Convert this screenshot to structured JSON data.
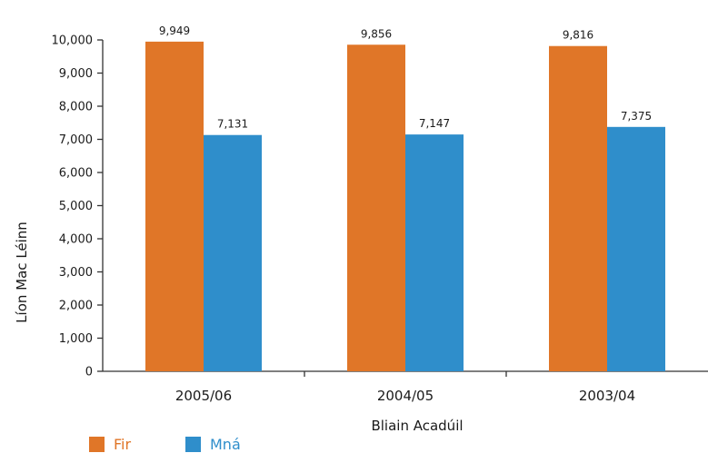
{
  "chart_data": {
    "type": "bar",
    "categories": [
      "2005/06",
      "2004/05",
      "2003/04"
    ],
    "series": [
      {
        "name": "Fir",
        "values": [
          9949,
          9856,
          9816
        ],
        "value_labels": [
          "9,949",
          "9,856",
          "9,816"
        ],
        "color": "#e07628"
      },
      {
        "name": "Mná",
        "values": [
          7131,
          7147,
          7375
        ],
        "value_labels": [
          "7,131",
          "7,147",
          "7,375"
        ],
        "color": "#2f8ecb"
      }
    ],
    "ylabel": "Líon Mac Léinn",
    "xlabel": "Bliain Acadúil",
    "ylim": [
      0,
      10000
    ],
    "yticks": [
      0,
      1000,
      2000,
      3000,
      4000,
      5000,
      6000,
      7000,
      8000,
      9000,
      10000
    ],
    "ytick_labels": [
      "0",
      "1,000",
      "2,000",
      "3,000",
      "4,000",
      "5,000",
      "6,000",
      "7,000",
      "8,000",
      "9,000",
      "10,000"
    ],
    "grid": false,
    "legend_position": "bottom-left"
  }
}
